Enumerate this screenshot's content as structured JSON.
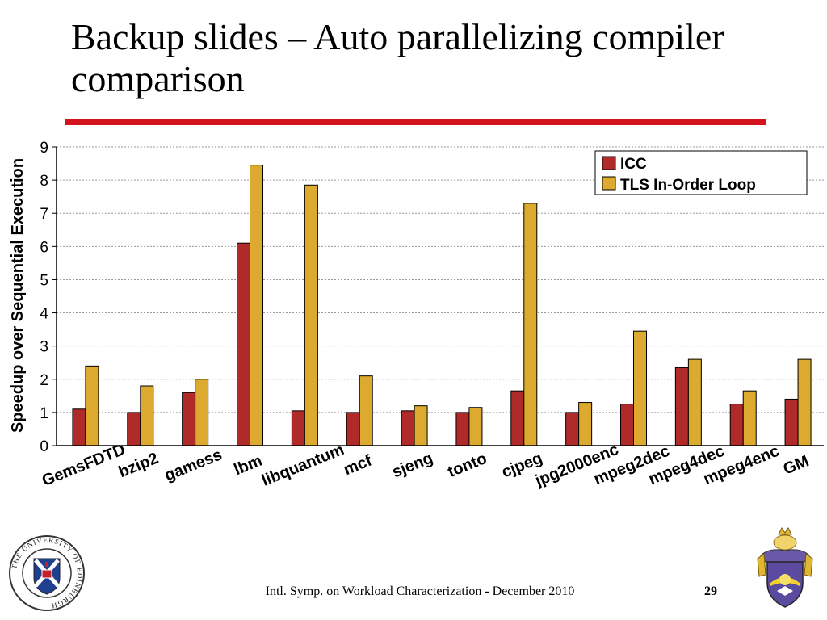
{
  "slide": {
    "title": "Backup slides – Auto parallelizing compiler comparison",
    "footer": "Intl. Symp. on Workload Characterization - December 2010",
    "page_number": "29"
  },
  "colors": {
    "accent_rule": "#d4141c",
    "icc": "#b02a2a",
    "tls": "#dcaa2e"
  },
  "logos": {
    "left": "university-of-edinburgh-seal",
    "left_text": "THE UNIVERSITY OF EDINBURGH",
    "right": "coat-of-arms"
  },
  "chart_data": {
    "type": "bar",
    "ylabel": "Speedup over Sequential Execution",
    "xlabel": "",
    "ylim": [
      0,
      9
    ],
    "yticks": [
      0,
      1,
      2,
      3,
      4,
      5,
      6,
      7,
      8,
      9
    ],
    "grid": true,
    "legend": "top-right",
    "categories": [
      "GemsFDTD",
      "bzip2",
      "gamess",
      "lbm",
      "libquantum",
      "mcf",
      "sjeng",
      "tonto",
      "cjpeg",
      "jpg2000enc",
      "mpeg2dec",
      "mpeg4dec",
      "mpeg4enc",
      "GM"
    ],
    "series": [
      {
        "name": "ICC",
        "values": [
          1.1,
          1.0,
          1.6,
          6.1,
          1.05,
          1.0,
          1.05,
          1.0,
          1.65,
          1.0,
          1.25,
          2.35,
          1.25,
          1.4
        ]
      },
      {
        "name": "TLS In-Order Loop",
        "values": [
          2.4,
          1.8,
          2.0,
          8.45,
          7.85,
          2.1,
          1.2,
          1.15,
          7.3,
          1.3,
          3.45,
          2.6,
          1.65,
          2.6
        ]
      }
    ]
  }
}
